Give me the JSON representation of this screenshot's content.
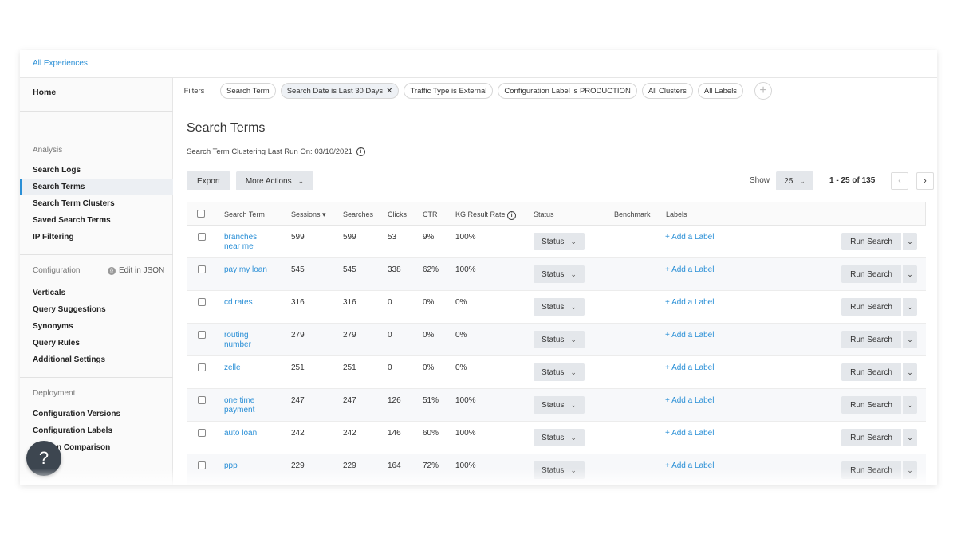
{
  "breadcrumb": "All Experiences",
  "sidebar": {
    "home": "Home",
    "analysis_head": "Analysis",
    "analysis_items": [
      "Search Logs",
      "Search Terms",
      "Search Term Clusters",
      "Saved Search Terms",
      "IP Filtering"
    ],
    "configuration_head": "Configuration",
    "edit_json": "Edit in JSON",
    "configuration_items": [
      "Verticals",
      "Query Suggestions",
      "Synonyms",
      "Query Rules",
      "Additional Settings"
    ],
    "deployment_head": "Deployment",
    "deployment_items": [
      "Configuration Versions",
      "Configuration Labels",
      "Version Comparison"
    ],
    "active_item": "Search Terms"
  },
  "help_icon": "?",
  "filters": {
    "label": "Filters",
    "chips": [
      "Search Term",
      "Search Date is Last 30 Days",
      "Traffic Type is External",
      "Configuration Label is PRODUCTION",
      "All Clusters",
      "All Labels"
    ]
  },
  "page": {
    "title": "Search Terms",
    "subtitle": "Search Term Clustering Last Run On: 03/10/2021",
    "export": "Export",
    "more_actions": "More Actions",
    "show_label": "Show",
    "page_size": "25",
    "range": "1 - 25 of 135"
  },
  "table": {
    "columns": [
      "Search Term",
      "Sessions",
      "Searches",
      "Clicks",
      "CTR",
      "KG Result Rate",
      "Status",
      "Benchmark",
      "Labels"
    ],
    "status_label": "Status",
    "add_label": "+ Add a Label",
    "run_search": "Run Search",
    "rows": [
      {
        "term": "branches near me",
        "sessions": "599",
        "searches": "599",
        "clicks": "53",
        "ctr": "9%",
        "kg": "100%"
      },
      {
        "term": "pay my loan",
        "sessions": "545",
        "searches": "545",
        "clicks": "338",
        "ctr": "62%",
        "kg": "100%"
      },
      {
        "term": "cd rates",
        "sessions": "316",
        "searches": "316",
        "clicks": "0",
        "ctr": "0%",
        "kg": "0%"
      },
      {
        "term": "routing number",
        "sessions": "279",
        "searches": "279",
        "clicks": "0",
        "ctr": "0%",
        "kg": "0%"
      },
      {
        "term": "zelle",
        "sessions": "251",
        "searches": "251",
        "clicks": "0",
        "ctr": "0%",
        "kg": "0%"
      },
      {
        "term": "one time payment",
        "sessions": "247",
        "searches": "247",
        "clicks": "126",
        "ctr": "51%",
        "kg": "100%"
      },
      {
        "term": "auto loan",
        "sessions": "242",
        "searches": "242",
        "clicks": "146",
        "ctr": "60%",
        "kg": "100%"
      },
      {
        "term": "ppp",
        "sessions": "229",
        "searches": "229",
        "clicks": "164",
        "ctr": "72%",
        "kg": "100%"
      }
    ]
  },
  "colors": {
    "link": "#2a8fd6",
    "button_bg": "#e4e7eb",
    "help_bg": "#3d4650"
  }
}
